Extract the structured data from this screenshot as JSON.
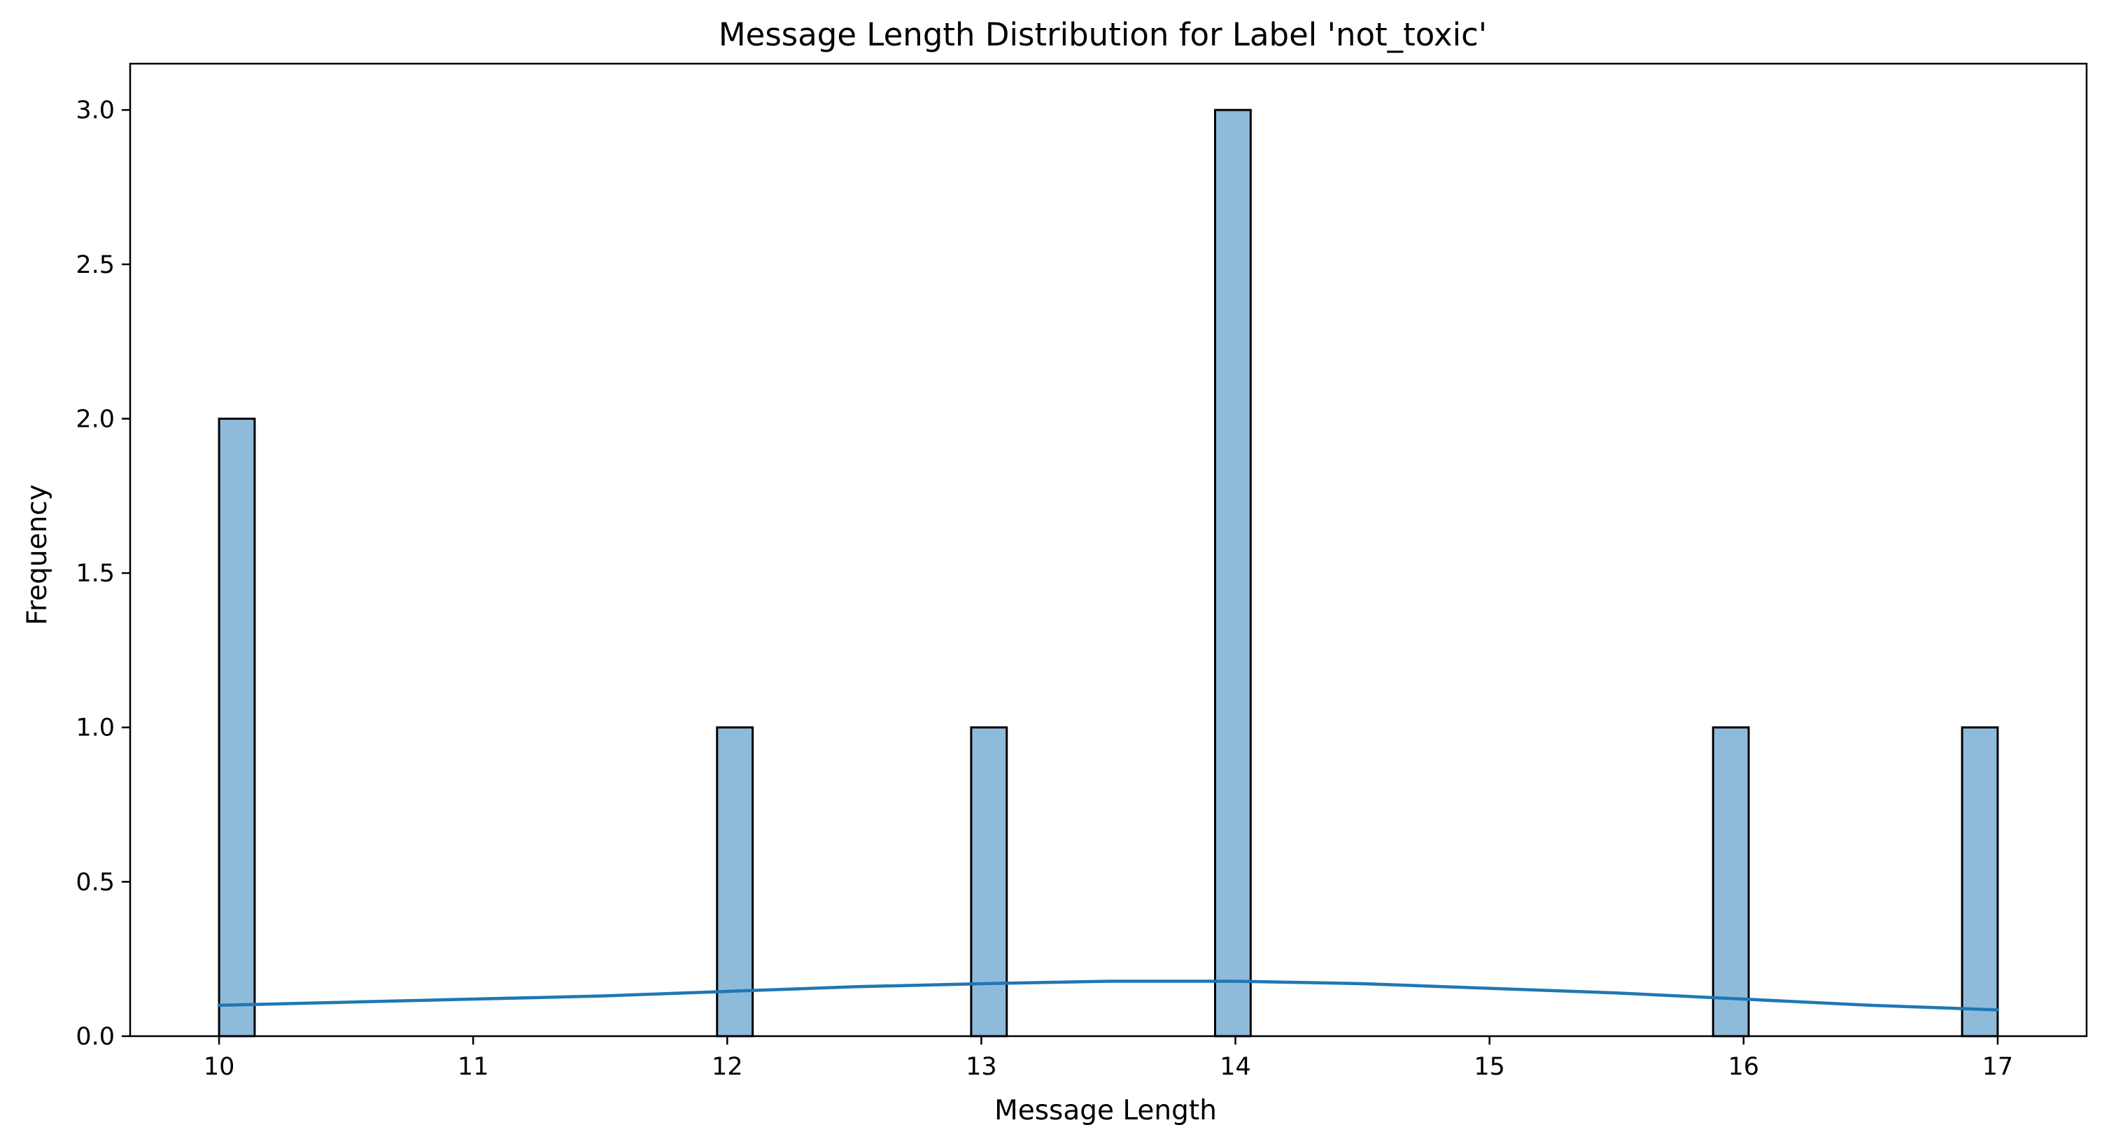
{
  "chart_data": {
    "type": "bar",
    "title": "Message Length Distribution for Label 'not_toxic'",
    "xlabel": "Message Length",
    "ylabel": "Frequency",
    "xlim": [
      9.65,
      17.35
    ],
    "ylim": [
      0,
      3.15
    ],
    "x_ticks": [
      10,
      11,
      12,
      13,
      14,
      15,
      16,
      17
    ],
    "x_tick_labels": [
      "10",
      "11",
      "12",
      "13",
      "14",
      "15",
      "16",
      "17"
    ],
    "y_ticks": [
      0,
      0.5,
      1,
      1.5,
      2,
      2.5,
      3
    ],
    "y_tick_labels": [
      "0.0",
      "0.5",
      "1.0",
      "1.5",
      "2.0",
      "2.5",
      "3.0"
    ],
    "bin_width": 0.14,
    "bins": [
      {
        "x0": 10.0,
        "value": 2
      },
      {
        "x0": 11.96,
        "value": 1
      },
      {
        "x0": 12.96,
        "value": 1
      },
      {
        "x0": 13.92,
        "value": 3
      },
      {
        "x0": 15.88,
        "value": 1
      },
      {
        "x0": 16.86,
        "value": 1
      }
    ],
    "kde": {
      "x": [
        10.0,
        10.5,
        11.0,
        11.5,
        12.0,
        12.5,
        13.0,
        13.5,
        14.0,
        14.5,
        15.0,
        15.5,
        16.0,
        16.5,
        17.0
      ],
      "y": [
        0.1,
        0.11,
        0.12,
        0.13,
        0.145,
        0.16,
        0.17,
        0.178,
        0.178,
        0.17,
        0.155,
        0.14,
        0.12,
        0.1,
        0.085
      ]
    },
    "grid": false,
    "bar_fill": "#8fbbdb",
    "bar_edge": "#000000",
    "kde_color": "#1f77b4"
  }
}
